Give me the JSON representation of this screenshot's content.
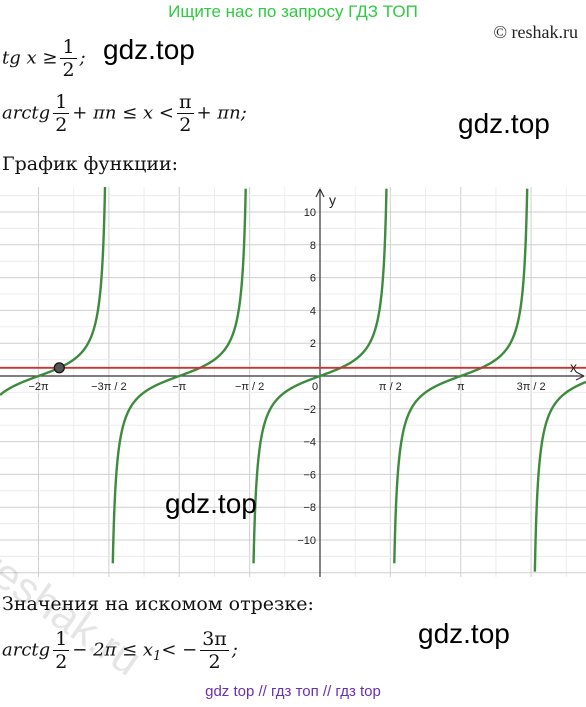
{
  "banner": "Ищите нас по запросу ГДЗ ТОП",
  "copyright": "© reshak.ru",
  "watermark": "gdz.top",
  "line1": {
    "lhs": "tg x ≥",
    "num": "1",
    "den": "2",
    "tail": ";"
  },
  "line2": {
    "fn": "arctg",
    "num": "1",
    "den": "2",
    "mid": "+ πn ≤ x <",
    "num2": "π",
    "den2": "2",
    "tail": "+ πn;"
  },
  "graph_heading": "График функции:",
  "segment_heading": "Значения на искомом отрезке:",
  "line3": {
    "fn": "arctg",
    "num": "1",
    "den": "2",
    "mid": "− 2π ≤ x",
    "sub": "1",
    "rel": "< −",
    "num2": "3π",
    "den2": "2",
    "tail": ";"
  },
  "bottom_links": "gdz top  //  гдз топ  //  гдз top",
  "reshak_watermark": "reshak.ru",
  "chart_data": {
    "type": "line",
    "xlabel": "x",
    "ylabel": "y",
    "xlim": [
      -7.1,
      9.2
    ],
    "ylim": [
      -12,
      12
    ],
    "x_ticks": [
      "−2π",
      "−3π / 2",
      "−π",
      "−π / 2",
      "0",
      "π / 2",
      "π",
      "3π / 2"
    ],
    "x_tick_values": [
      -6.2832,
      -4.7124,
      -3.1416,
      -1.5708,
      0,
      1.5708,
      3.1416,
      4.7124
    ],
    "y_ticks": [
      10,
      8,
      6,
      4,
      2,
      -2,
      -4,
      -6,
      -8,
      -10
    ],
    "grid": true,
    "series": [
      {
        "function": "tan(x)",
        "color": "#3d8b3d"
      },
      {
        "function": "y = 1/2",
        "color": "#cc3333"
      }
    ],
    "marked_point": {
      "x": -5.8195,
      "y": 0.5
    }
  }
}
